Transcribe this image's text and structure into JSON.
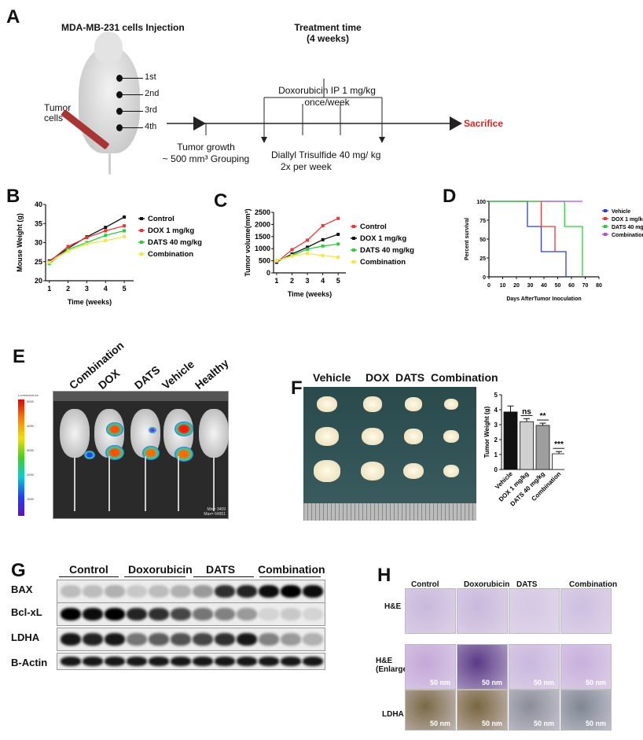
{
  "panels": {
    "a": "A",
    "b": "B",
    "c": "C",
    "d": "D",
    "e": "E",
    "f": "F",
    "g": "G",
    "h": "H"
  },
  "schema": {
    "injection_title": "MDA-MB-231 cells Injection",
    "tumor_cells": "Tumor cells",
    "sites": [
      "1st",
      "2nd",
      "3rd",
      "4th"
    ],
    "treatment_title": "Treatment time",
    "treatment_duration": "(4 weeks)",
    "dox_text": "Doxorubicin IP 1 mg/kg",
    "dox_freq": "once/week",
    "growth_text": "Tumor growth",
    "grouping_text": "~ 500 mm³ Grouping",
    "dats_text": "Diallyl Trisulfide 40 mg/ kg",
    "dats_freq": "2x per week",
    "sacrifice": "Sacrifice",
    "sacrifice_color": "#e02020"
  },
  "chart_data": [
    {
      "id": "B",
      "type": "line",
      "xlabel": "Time (weeks)",
      "ylabel": "Mouse Weight (g)",
      "x": [
        1,
        2,
        3,
        4,
        5
      ],
      "xlim": [
        0.8,
        5.5
      ],
      "ylim": [
        20,
        40
      ],
      "yticks": [
        20,
        25,
        30,
        35,
        40
      ],
      "legend": "right",
      "series": [
        {
          "name": "Control",
          "color": "#111111",
          "marker": "circle",
          "values": [
            25.2,
            28.5,
            31.5,
            34.0,
            36.7
          ]
        },
        {
          "name": "DOX 1 mg/kg",
          "color": "#e53935",
          "marker": "square",
          "values": [
            25.0,
            29.0,
            31.3,
            33.1,
            34.4
          ]
        },
        {
          "name": "DATS 40 mg/kg",
          "color": "#2ecc40",
          "marker": "triangle",
          "values": [
            24.5,
            28.2,
            30.0,
            31.9,
            33.1
          ]
        },
        {
          "name": "Combination",
          "color": "#f5e642",
          "marker": "diamond",
          "values": [
            24.8,
            27.8,
            29.6,
            30.5,
            31.6
          ]
        }
      ]
    },
    {
      "id": "C",
      "type": "line",
      "xlabel": "Time (weeks)",
      "ylabel": "Tumor volume(mm³)",
      "x": [
        1,
        2,
        3,
        4,
        5
      ],
      "xlim": [
        0.8,
        5.5
      ],
      "ylim": [
        0,
        2500
      ],
      "yticks": [
        0,
        500,
        1000,
        1500,
        2000,
        2500
      ],
      "legend": "right",
      "series": [
        {
          "name": "Control",
          "color": "#e53935",
          "marker": "square",
          "values": [
            430,
            960,
            1350,
            1950,
            2250
          ]
        },
        {
          "name": "DOX 1 mg/kg",
          "color": "#111111",
          "marker": "square",
          "values": [
            450,
            780,
            1060,
            1370,
            1590
          ]
        },
        {
          "name": "DATS 40 mg/kg",
          "color": "#2ecc40",
          "marker": "square",
          "values": [
            500,
            720,
            980,
            1110,
            1190
          ]
        },
        {
          "name": "Combination",
          "color": "#f5e642",
          "marker": "square",
          "values": [
            490,
            700,
            800,
            720,
            650
          ]
        }
      ]
    },
    {
      "id": "D",
      "type": "line",
      "subtype": "survival-step",
      "xlabel": "Days AfterTumor Inoculation",
      "ylabel": "Percent survival",
      "xlim": [
        0,
        80
      ],
      "ylim": [
        0,
        100
      ],
      "xticks": [
        0,
        10,
        20,
        30,
        40,
        50,
        60,
        70,
        80
      ],
      "yticks": [
        0,
        25,
        50,
        75,
        100
      ],
      "legend": "right",
      "series": [
        {
          "name": "Vehicle",
          "color": "#2b3fd6",
          "points": [
            [
              0,
              100
            ],
            [
              28,
              100
            ],
            [
              28,
              66.7
            ],
            [
              38,
              66.7
            ],
            [
              38,
              33.3
            ],
            [
              56,
              33.3
            ],
            [
              56,
              0
            ]
          ]
        },
        {
          "name": "DOX 1 mg/kg",
          "color": "#e53935",
          "points": [
            [
              0,
              100
            ],
            [
              38,
              100
            ],
            [
              38,
              66.7
            ],
            [
              48,
              66.7
            ],
            [
              48,
              33.3
            ]
          ]
        },
        {
          "name": "DATS 40 mg/kg",
          "color": "#2ecc40",
          "points": [
            [
              0,
              100
            ],
            [
              55,
              100
            ],
            [
              55,
              66.7
            ],
            [
              68,
              66.7
            ],
            [
              68,
              0
            ]
          ]
        },
        {
          "name": "Combination",
          "color": "#b04fd6",
          "points": [
            [
              38,
              100
            ],
            [
              68,
              100
            ]
          ]
        }
      ]
    },
    {
      "id": "F",
      "type": "bar",
      "ylabel": "Tumor Weight (g)",
      "categories": [
        "Vehicle",
        "DOX 1 mg/kg",
        "DATS 40 mg/kg",
        "Combination"
      ],
      "values": [
        3.85,
        3.2,
        2.95,
        1.05
      ],
      "errors": [
        0.4,
        0.2,
        0.15,
        0.15
      ],
      "colors": [
        "#111111",
        "#cfcfcf",
        "#9e9e9e",
        "#ffffff"
      ],
      "significance": [
        "",
        "ns",
        "**",
        "***"
      ],
      "ylim": [
        0,
        5
      ],
      "yticks": [
        0,
        1,
        2,
        3,
        4,
        5
      ]
    }
  ],
  "imaging": {
    "labels": [
      "Combination",
      "DOX",
      "DATS",
      "Vehicle",
      "Healthy"
    ],
    "scale_title": "Luminescence",
    "scale_ticks": [
      "5000",
      "4000",
      "3000",
      "2000",
      "1000"
    ],
    "min_text": "Min= 3409",
    "max_text": "Max= 64951"
  },
  "tumors": {
    "labels": [
      "Vehicle",
      "DOX",
      "DATS",
      "Combination"
    ]
  },
  "western": {
    "groups": [
      "Control",
      "Doxorubicin",
      "DATS",
      "Combination"
    ],
    "proteins": [
      "BAX",
      "Bcl-xL",
      "LDHA",
      "B-Actin"
    ]
  },
  "histology": {
    "columns": [
      "Control",
      "Doxorubicin",
      "DATS",
      "Combination"
    ],
    "rows": [
      "H&E",
      "H&E (Enlarge)",
      "LDHA"
    ],
    "scale_bar": "50 nm"
  }
}
